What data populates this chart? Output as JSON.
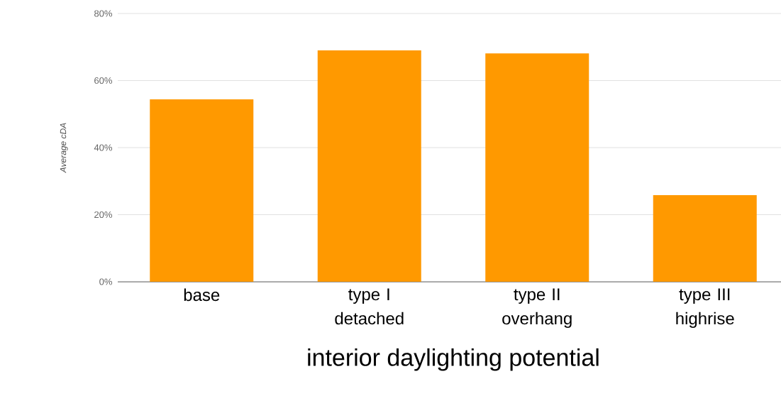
{
  "chart_data": {
    "type": "bar",
    "xlabel": "interior daylighting potential",
    "ylabel": "Average cDA",
    "categories": [
      "base",
      "type I detached",
      "type II overhang",
      "type III highrise"
    ],
    "values": [
      54.4,
      69.0,
      68.1,
      25.8
    ],
    "color": "#ff9900",
    "ylim": [
      0,
      80
    ],
    "yticks": [
      {
        "value": 0,
        "label": "0%"
      },
      {
        "value": 20,
        "label": "20%"
      },
      {
        "value": 40,
        "label": "40%"
      },
      {
        "value": 60,
        "label": "60%"
      },
      {
        "value": 80,
        "label": "80%"
      }
    ],
    "grid": "y"
  }
}
